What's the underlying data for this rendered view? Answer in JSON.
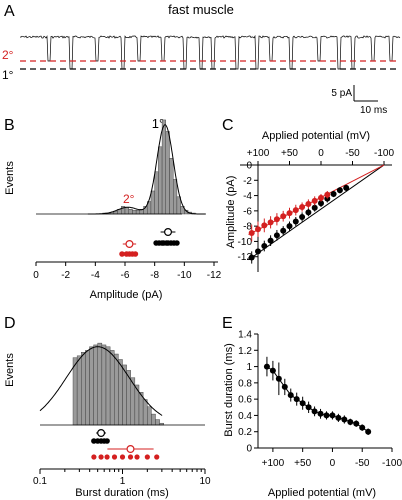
{
  "figure": {
    "panel_a": {
      "letter": "A",
      "title": "fast muscle",
      "level_secondary": "2°",
      "level_primary": "1°",
      "scale_current": "5 pA",
      "scale_time": "10 ms",
      "colors": {
        "trace": "#000000",
        "secondary": "#d42020",
        "primary": "#000000"
      }
    },
    "panel_b": {
      "letter": "B",
      "peak_primary": "1°",
      "peak_secondary": "2°",
      "ylabel": "Events",
      "xlabel": "Amplitude (pA)",
      "xticks": [
        "0",
        "-2",
        "-4",
        "-6",
        "-8",
        "-10",
        "-12"
      ]
    },
    "panel_c": {
      "letter": "C",
      "xlabel": "Applied potential (mV)",
      "ylabel": "Amplitude (pA)",
      "xticks": [
        "+100",
        "+50",
        "0",
        "-50",
        "-100"
      ],
      "yticks": [
        "0",
        "-2",
        "-4",
        "-6",
        "-8",
        "-10",
        "-12"
      ]
    },
    "panel_d": {
      "letter": "D",
      "ylabel": "Events",
      "xlabel": "Burst duration (ms)",
      "xticks": [
        "0.1",
        "1",
        "10"
      ]
    },
    "panel_e": {
      "letter": "E",
      "ylabel": "Burst duration (ms)",
      "xlabel": "Applied potential (mV)",
      "xticks": [
        "+100",
        "+50",
        "0",
        "-50",
        "-100"
      ],
      "yticks": [
        "0",
        "0.2",
        "0.4",
        "0.6",
        "0.8",
        "1",
        "1.2",
        "1.4"
      ]
    }
  },
  "chart_data": [
    {
      "type": "bar",
      "panel": "B",
      "xlabel": "Amplitude (pA)",
      "ylabel": "Events",
      "xlim": [
        0,
        -12
      ],
      "bin_width": 0.25,
      "bin_starts": [
        -4.5,
        -4.75,
        -5.0,
        -5.25,
        -5.5,
        -5.75,
        -6.0,
        -6.25,
        -6.5,
        -6.75,
        -7.0,
        -7.25,
        -7.5,
        -7.75,
        -8.0,
        -8.25,
        -8.5,
        -8.75,
        -9.0,
        -9.25,
        -9.5,
        -9.75,
        -10.0,
        -10.25,
        -10.5
      ],
      "values": [
        1,
        1,
        2,
        3,
        5,
        8,
        7,
        5,
        4,
        4,
        5,
        8,
        13,
        24,
        44,
        70,
        98,
        86,
        58,
        36,
        18,
        8,
        4,
        2,
        1
      ],
      "fit_components": [
        {
          "label": "1°",
          "mean": -8.7,
          "sd": 0.55,
          "peak": 93
        },
        {
          "label": "2°",
          "mean": -6.2,
          "sd": 0.7,
          "peak": 7
        }
      ],
      "patch_means_primary": [
        -8.1,
        -8.3,
        -8.5,
        -8.6,
        -8.8,
        -8.9,
        -9.1,
        -9.3,
        -9.5
      ],
      "patch_means_secondary": [
        -5.8,
        -6.1,
        -6.3,
        -6.5,
        -6.7
      ],
      "summary_primary": {
        "mean": -8.9,
        "sd": 0.5
      },
      "summary_secondary": {
        "mean": -6.3,
        "sd": 0.45
      }
    },
    {
      "type": "scatter",
      "panel": "C",
      "xlabel": "Applied potential (mV)",
      "ylabel": "Amplitude (pA)",
      "xlim": [
        100,
        -100
      ],
      "ylim": [
        -14,
        0
      ],
      "series": [
        {
          "color": "#000000",
          "x": [
            110,
            100,
            90,
            80,
            70,
            60,
            50,
            40,
            30,
            20,
            10,
            0,
            -10,
            -20,
            -30,
            -40
          ],
          "y": [
            -12.1,
            -11.3,
            -10.6,
            -9.9,
            -9.2,
            -8.6,
            -8.0,
            -7.4,
            -6.8,
            -6.2,
            -5.6,
            -5.0,
            -4.4,
            -3.8,
            -3.3,
            -3.0
          ],
          "err": [
            0.8,
            0.8,
            0.7,
            0.7,
            0.7,
            0.6,
            0.6,
            0.6,
            0.6,
            0.5,
            0.5,
            0.5,
            0.5,
            0.4,
            0.4,
            0.4
          ]
        },
        {
          "color": "#d42020",
          "x": [
            110,
            100,
            90,
            80,
            70,
            60,
            50,
            40,
            30,
            20,
            10,
            0,
            -10
          ],
          "y": [
            -8.9,
            -8.4,
            -7.9,
            -7.5,
            -7.1,
            -6.7,
            -6.3,
            -5.9,
            -5.5,
            -5.1,
            -4.7,
            -4.3,
            -3.9
          ],
          "err": [
            1.1,
            1.0,
            0.9,
            0.8,
            0.8,
            0.7,
            0.7,
            0.7,
            0.6,
            0.6,
            0.6,
            0.5,
            0.5
          ]
        }
      ],
      "fit_lines": [
        {
          "color": "#000000",
          "x": [
            115,
            -100
          ],
          "y": [
            -12.4,
            0
          ]
        },
        {
          "color": "#d42020",
          "x": [
            115,
            -100
          ],
          "y": [
            -9.1,
            0
          ]
        }
      ]
    },
    {
      "type": "bar",
      "panel": "D",
      "xlabel": "Burst duration (ms)",
      "ylabel": "Events",
      "xscale": "log",
      "xlim": [
        0.1,
        10
      ],
      "bin_log_width": 0.05,
      "bin_starts_log10": [
        -0.6,
        -0.55,
        -0.5,
        -0.45,
        -0.4,
        -0.35,
        -0.3,
        -0.25,
        -0.2,
        -0.15,
        -0.1,
        -0.05,
        0.0,
        0.05,
        0.1,
        0.15,
        0.2,
        0.25,
        0.3,
        0.35,
        0.4,
        0.45
      ],
      "values": [
        37,
        38,
        40,
        41,
        43,
        44,
        45,
        44,
        43,
        41,
        39,
        36,
        33,
        30,
        26,
        22,
        18,
        14,
        10,
        6,
        3,
        1
      ],
      "fit_curve": {
        "log10_center": -0.3,
        "log10_sd": 0.38,
        "peak": 43,
        "log10_range": [
          -1.0,
          0.5
        ]
      },
      "patch_means": [
        0.45,
        0.5,
        0.55,
        0.6,
        0.65
      ],
      "patch_means_red": [
        0.45,
        0.55,
        0.65,
        0.8,
        1.0,
        1.25,
        1.5,
        2.0,
        2.6
      ],
      "summary": {
        "mean": 0.55,
        "sd_log10": 0.06
      },
      "summary_red": {
        "mean": 1.25,
        "sd_log10": 0.28
      }
    },
    {
      "type": "scatter",
      "panel": "E",
      "xlabel": "Applied potential (mV)",
      "ylabel": "Burst duration (ms)",
      "xlim": [
        125,
        -100
      ],
      "ylim": [
        0,
        1.4
      ],
      "series": [
        {
          "color": "#000000",
          "x": [
            110,
            100,
            90,
            80,
            70,
            60,
            50,
            40,
            30,
            20,
            10,
            0,
            -10,
            -20,
            -30,
            -40,
            -50,
            -60
          ],
          "y": [
            1.0,
            0.95,
            0.85,
            0.75,
            0.65,
            0.6,
            0.55,
            0.5,
            0.45,
            0.42,
            0.4,
            0.4,
            0.37,
            0.35,
            0.32,
            0.3,
            0.25,
            0.2
          ],
          "err": [
            0.12,
            0.12,
            0.2,
            0.1,
            0.08,
            0.08,
            0.08,
            0.07,
            0.06,
            0.06,
            0.05,
            0.05,
            0.05,
            0.05,
            0.04,
            0.04,
            0.04,
            0.04
          ]
        }
      ]
    }
  ]
}
